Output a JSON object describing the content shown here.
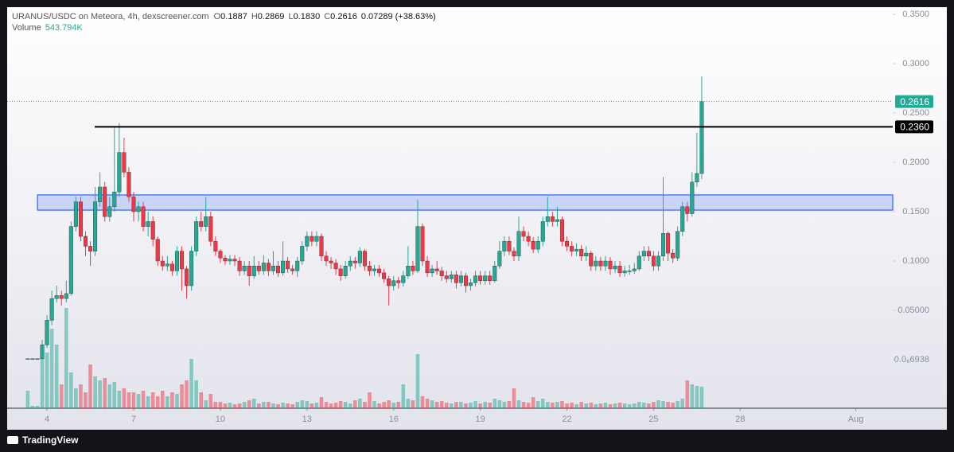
{
  "header": {
    "title": "URANUS/USDC on Meteora, 4h, dexscreener.com",
    "ohlc_labels": [
      "O",
      "H",
      "L",
      "C"
    ],
    "ohlc_values": [
      "0.1887",
      "0.2869",
      "0.1830",
      "0.2616"
    ],
    "change": "0.07289 (+38.63%)",
    "volume_label": "Volume",
    "volume_value": "543.794K"
  },
  "footer": {
    "brand": "TradingView"
  },
  "chart_data": {
    "type": "candlestick",
    "x": [
      3.333,
      3.5,
      3.667,
      3.833,
      4,
      4.167,
      4.333,
      4.5,
      4.667,
      4.833,
      5,
      5.167,
      5.333,
      5.5,
      5.667,
      5.833,
      6,
      6.167,
      6.333,
      6.5,
      6.667,
      6.833,
      7,
      7.167,
      7.333,
      7.5,
      7.667,
      7.833,
      8,
      8.167,
      8.333,
      8.5,
      8.667,
      8.833,
      9,
      9.167,
      9.333,
      9.5,
      9.667,
      9.833,
      10,
      10.167,
      10.333,
      10.5,
      10.667,
      10.833,
      11,
      11.167,
      11.333,
      11.5,
      11.667,
      11.833,
      12,
      12.167,
      12.333,
      12.5,
      12.667,
      12.833,
      13,
      13.167,
      13.333,
      13.5,
      13.667,
      13.833,
      14,
      14.167,
      14.333,
      14.5,
      14.667,
      14.833,
      15,
      15.167,
      15.333,
      15.5,
      15.667,
      15.833,
      16,
      16.167,
      16.333,
      16.5,
      16.667,
      16.833,
      17,
      17.167,
      17.333,
      17.5,
      17.667,
      17.833,
      18,
      18.167,
      18.333,
      18.5,
      18.667,
      18.833,
      19,
      19.167,
      19.333,
      19.5,
      19.667,
      19.833,
      20,
      20.167,
      20.333,
      20.5,
      20.667,
      20.833,
      21,
      21.167,
      21.333,
      21.5,
      21.667,
      21.833,
      22,
      22.167,
      22.333,
      22.5,
      22.667,
      22.833,
      23,
      23.167,
      23.333,
      23.5,
      23.667,
      23.833,
      24,
      24.167,
      24.333,
      24.5,
      24.667,
      24.833,
      25,
      25.167,
      25.333,
      25.5,
      25.667,
      25.833,
      26,
      26.167,
      26.333,
      26.5,
      26.667
    ],
    "open": [
      0.001,
      0.001,
      0.001,
      0.001,
      0.015,
      0.04,
      0.062,
      0.065,
      0.062,
      0.067,
      0.135,
      0.16,
      0.125,
      0.115,
      0.11,
      0.16,
      0.175,
      0.145,
      0.155,
      0.17,
      0.21,
      0.19,
      0.165,
      0.15,
      0.155,
      0.135,
      0.14,
      0.122,
      0.1,
      0.095,
      0.097,
      0.09,
      0.11,
      0.092,
      0.075,
      0.11,
      0.14,
      0.135,
      0.145,
      0.12,
      0.11,
      0.103,
      0.1,
      0.102,
      0.1,
      0.09,
      0.095,
      0.085,
      0.095,
      0.09,
      0.098,
      0.09,
      0.095,
      0.088,
      0.1,
      0.092,
      0.09,
      0.1,
      0.115,
      0.125,
      0.12,
      0.125,
      0.105,
      0.1,
      0.098,
      0.092,
      0.085,
      0.095,
      0.1,
      0.098,
      0.11,
      0.095,
      0.09,
      0.092,
      0.088,
      0.082,
      0.075,
      0.08,
      0.078,
      0.085,
      0.095,
      0.09,
      0.135,
      0.1,
      0.088,
      0.092,
      0.09,
      0.085,
      0.082,
      0.086,
      0.078,
      0.085,
      0.075,
      0.078,
      0.085,
      0.08,
      0.085,
      0.08,
      0.095,
      0.11,
      0.12,
      0.11,
      0.105,
      0.13,
      0.125,
      0.12,
      0.112,
      0.12,
      0.14,
      0.145,
      0.14,
      0.142,
      0.12,
      0.115,
      0.11,
      0.112,
      0.105,
      0.108,
      0.095,
      0.1,
      0.095,
      0.1,
      0.092,
      0.095,
      0.088,
      0.09,
      0.09,
      0.092,
      0.105,
      0.11,
      0.105,
      0.095,
      0.105,
      0.128,
      0.108,
      0.103,
      0.13,
      0.155,
      0.148,
      0.18,
      0.1887
    ],
    "high": [
      0.0012,
      0.0012,
      0.0012,
      0.02,
      0.045,
      0.07,
      0.075,
      0.07,
      0.08,
      0.14,
      0.165,
      0.165,
      0.13,
      0.12,
      0.175,
      0.19,
      0.18,
      0.165,
      0.235,
      0.24,
      0.225,
      0.195,
      0.17,
      0.16,
      0.16,
      0.15,
      0.145,
      0.125,
      0.105,
      0.105,
      0.1,
      0.115,
      0.115,
      0.095,
      0.115,
      0.145,
      0.15,
      0.165,
      0.15,
      0.125,
      0.112,
      0.106,
      0.106,
      0.106,
      0.104,
      0.1,
      0.1,
      0.105,
      0.1,
      0.106,
      0.102,
      0.11,
      0.1,
      0.12,
      0.104,
      0.096,
      0.104,
      0.12,
      0.13,
      0.13,
      0.13,
      0.128,
      0.11,
      0.104,
      0.102,
      0.096,
      0.1,
      0.105,
      0.104,
      0.114,
      0.112,
      0.1,
      0.096,
      0.096,
      0.092,
      0.085,
      0.085,
      0.084,
      0.09,
      0.115,
      0.1,
      0.162,
      0.138,
      0.105,
      0.096,
      0.1,
      0.094,
      0.09,
      0.09,
      0.09,
      0.09,
      0.088,
      0.082,
      0.09,
      0.09,
      0.09,
      0.09,
      0.1,
      0.12,
      0.125,
      0.125,
      0.114,
      0.145,
      0.135,
      0.13,
      0.124,
      0.125,
      0.145,
      0.165,
      0.15,
      0.155,
      0.145,
      0.125,
      0.12,
      0.118,
      0.116,
      0.115,
      0.11,
      0.105,
      0.104,
      0.105,
      0.104,
      0.1,
      0.1,
      0.095,
      0.096,
      0.098,
      0.11,
      0.115,
      0.115,
      0.11,
      0.11,
      0.185,
      0.13,
      0.112,
      0.135,
      0.16,
      0.16,
      0.19,
      0.23,
      0.2869
    ],
    "low": [
      0.0008,
      0.0008,
      0.0008,
      0.001,
      0.012,
      0.035,
      0.058,
      0.055,
      0.058,
      0.065,
      0.13,
      0.12,
      0.105,
      0.095,
      0.105,
      0.155,
      0.14,
      0.14,
      0.15,
      0.165,
      0.185,
      0.16,
      0.14,
      0.14,
      0.13,
      0.125,
      0.115,
      0.095,
      0.09,
      0.09,
      0.085,
      0.085,
      0.07,
      0.062,
      0.07,
      0.105,
      0.13,
      0.13,
      0.115,
      0.105,
      0.098,
      0.096,
      0.096,
      0.095,
      0.085,
      0.086,
      0.075,
      0.082,
      0.086,
      0.086,
      0.085,
      0.086,
      0.084,
      0.085,
      0.088,
      0.086,
      0.084,
      0.096,
      0.11,
      0.115,
      0.115,
      0.1,
      0.095,
      0.092,
      0.086,
      0.08,
      0.082,
      0.09,
      0.092,
      0.094,
      0.09,
      0.085,
      0.085,
      0.084,
      0.078,
      0.055,
      0.07,
      0.072,
      0.074,
      0.082,
      0.086,
      0.088,
      0.095,
      0.084,
      0.084,
      0.086,
      0.08,
      0.078,
      0.078,
      0.072,
      0.074,
      0.068,
      0.07,
      0.074,
      0.076,
      0.076,
      0.076,
      0.078,
      0.092,
      0.105,
      0.106,
      0.1,
      0.1,
      0.12,
      0.115,
      0.108,
      0.108,
      0.115,
      0.135,
      0.135,
      0.135,
      0.115,
      0.11,
      0.105,
      0.105,
      0.1,
      0.1,
      0.09,
      0.09,
      0.09,
      0.09,
      0.086,
      0.088,
      0.084,
      0.084,
      0.086,
      0.087,
      0.09,
      0.1,
      0.1,
      0.09,
      0.09,
      0.1,
      0.1,
      0.098,
      0.1,
      0.125,
      0.14,
      0.145,
      0.175,
      0.183
    ],
    "close": [
      0.001,
      0.001,
      0.001,
      0.015,
      0.04,
      0.062,
      0.065,
      0.062,
      0.067,
      0.135,
      0.16,
      0.125,
      0.115,
      0.11,
      0.16,
      0.175,
      0.145,
      0.155,
      0.17,
      0.21,
      0.19,
      0.165,
      0.15,
      0.155,
      0.135,
      0.14,
      0.122,
      0.1,
      0.095,
      0.097,
      0.09,
      0.11,
      0.092,
      0.075,
      0.11,
      0.14,
      0.135,
      0.145,
      0.12,
      0.11,
      0.103,
      0.1,
      0.102,
      0.1,
      0.09,
      0.095,
      0.085,
      0.095,
      0.09,
      0.098,
      0.09,
      0.095,
      0.088,
      0.1,
      0.092,
      0.09,
      0.1,
      0.115,
      0.125,
      0.12,
      0.125,
      0.105,
      0.1,
      0.098,
      0.092,
      0.085,
      0.095,
      0.1,
      0.098,
      0.11,
      0.095,
      0.09,
      0.092,
      0.088,
      0.082,
      0.075,
      0.08,
      0.078,
      0.085,
      0.095,
      0.09,
      0.135,
      0.1,
      0.088,
      0.092,
      0.09,
      0.085,
      0.082,
      0.086,
      0.078,
      0.085,
      0.075,
      0.078,
      0.085,
      0.08,
      0.085,
      0.08,
      0.095,
      0.11,
      0.12,
      0.11,
      0.105,
      0.13,
      0.125,
      0.12,
      0.112,
      0.12,
      0.14,
      0.145,
      0.14,
      0.142,
      0.12,
      0.115,
      0.11,
      0.112,
      0.105,
      0.108,
      0.095,
      0.1,
      0.095,
      0.1,
      0.092,
      0.095,
      0.088,
      0.09,
      0.09,
      0.092,
      0.105,
      0.11,
      0.105,
      0.095,
      0.105,
      0.128,
      0.108,
      0.103,
      0.13,
      0.155,
      0.148,
      0.18,
      0.1887,
      0.2616
    ],
    "volume": [
      440000,
      60000,
      60000,
      1600000,
      1400000,
      2000000,
      1600000,
      600000,
      2520000,
      900000,
      500000,
      600000,
      400000,
      1100000,
      800000,
      700000,
      760000,
      600000,
      660000,
      440000,
      500000,
      400000,
      400000,
      360000,
      440000,
      300000,
      400000,
      300000,
      440000,
      300000,
      400000,
      360000,
      600000,
      700000,
      1240000,
      700000,
      400000,
      200000,
      360000,
      160000,
      160000,
      120000,
      140000,
      100000,
      120000,
      160000,
      200000,
      240000,
      120000,
      160000,
      160000,
      120000,
      100000,
      140000,
      120000,
      100000,
      160000,
      200000,
      180000,
      120000,
      140000,
      280000,
      160000,
      120000,
      140000,
      180000,
      160000,
      120000,
      200000,
      240000,
      160000,
      400000,
      180000,
      120000,
      160000,
      200000,
      140000,
      160000,
      600000,
      240000,
      200000,
      1360000,
      300000,
      240000,
      200000,
      160000,
      180000,
      140000,
      120000,
      160000,
      160000,
      120000,
      140000,
      180000,
      120000,
      160000,
      140000,
      240000,
      200000,
      160000,
      180000,
      500000,
      200000,
      160000,
      140000,
      280000,
      180000,
      240000,
      160000,
      140000,
      160000,
      180000,
      120000,
      140000,
      100000,
      160000,
      120000,
      140000,
      100000,
      120000,
      140000,
      100000,
      120000,
      140000,
      120000,
      100000,
      120000,
      160000,
      140000,
      120000,
      160000,
      200000,
      180000,
      160000,
      140000,
      180000,
      240000,
      700000,
      600000,
      560000,
      543794
    ],
    "up_color": "#22ab94",
    "down_color": "#f23645",
    "xlim": [
      2.62,
      33.28
    ],
    "xticks": [
      4,
      7,
      10,
      13,
      16,
      19,
      22,
      25,
      28,
      {
        "value": 32,
        "label": "Aug"
      }
    ],
    "ylim": [
      -0.0492,
      0.3573
    ],
    "yticks": [
      {
        "value": 0.35,
        "label": "0.3500"
      },
      {
        "value": 0.3,
        "label": "0.3000"
      },
      {
        "value": 0.25,
        "label": "0.2500"
      },
      {
        "value": 0.2,
        "label": "0.2000"
      },
      {
        "value": 0.15,
        "label": "0.1500"
      },
      {
        "value": 0.1,
        "label": "0.1000"
      },
      {
        "value": 0.05,
        "label": "0.05000"
      },
      {
        "value": 6.938e-07,
        "label": "0.0₆6938"
      }
    ],
    "current_price": {
      "value": 0.2616,
      "label": "0.2616",
      "color": "#22ab94"
    },
    "horizontal_line": {
      "value": 0.236,
      "label": "0.2360",
      "x_start": 5.65,
      "color": "#000000"
    },
    "zone": {
      "low": 0.1516,
      "high": 0.167,
      "x_start": 3.67,
      "color": "#2962ff"
    }
  }
}
